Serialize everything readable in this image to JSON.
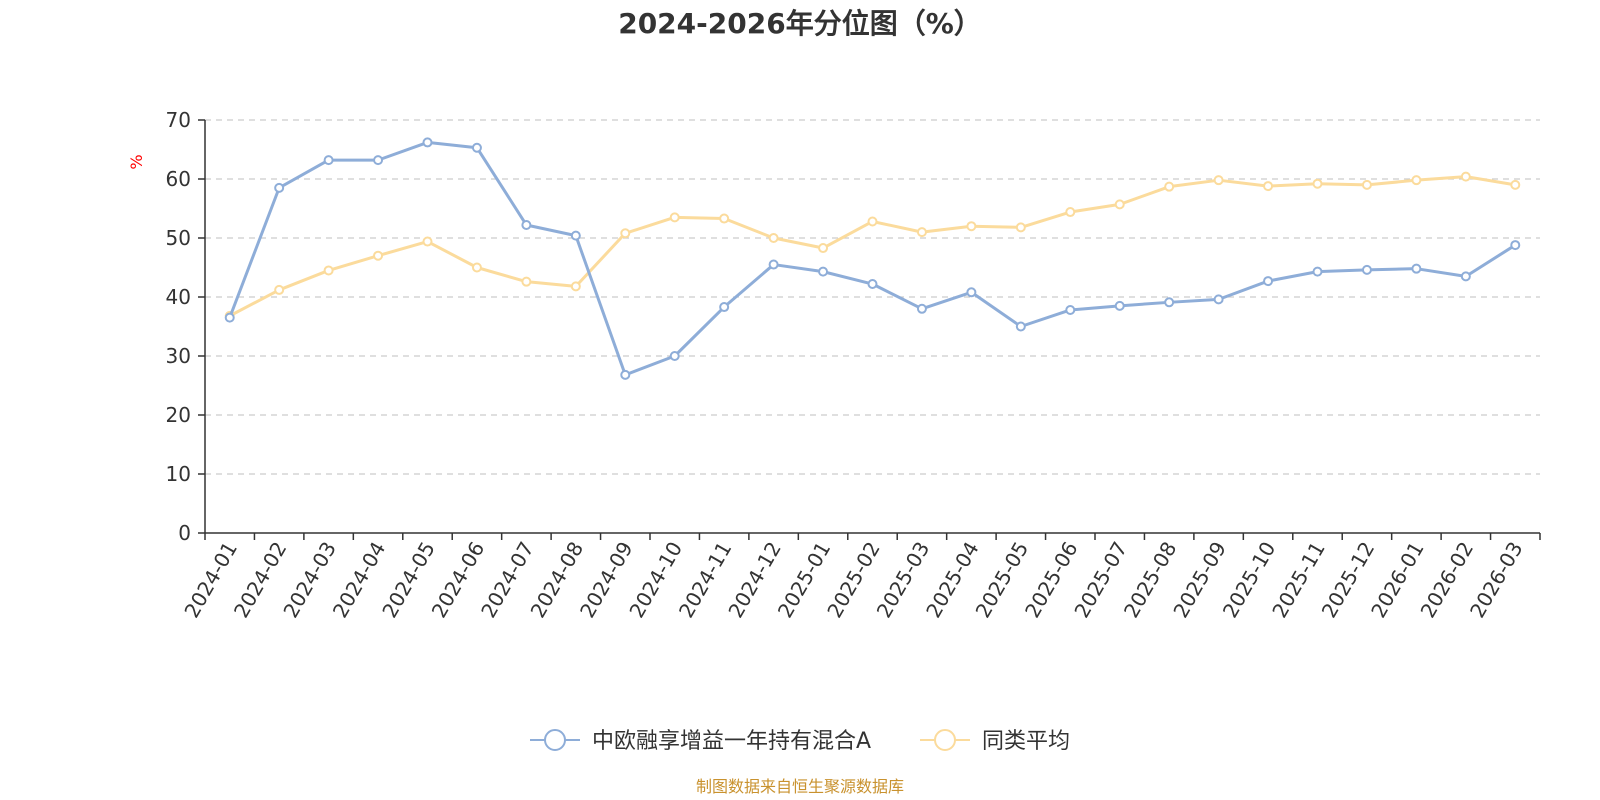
{
  "chart_data": {
    "type": "line",
    "title": "2024-2026年分位图（%）",
    "ylabel": "%",
    "ylim": [
      0,
      70
    ],
    "yticks": [
      0,
      10,
      20,
      30,
      40,
      50,
      60,
      70
    ],
    "grid": true,
    "legend_position": "bottom-center",
    "categories": [
      "2024-01",
      "2024-02",
      "2024-03",
      "2024-04",
      "2024-05",
      "2024-06",
      "2024-07",
      "2024-08",
      "2024-09",
      "2024-10",
      "2024-11",
      "2024-12",
      "2025-01",
      "2025-02",
      "2025-03",
      "2025-04",
      "2025-05",
      "2025-06",
      "2025-07",
      "2025-08",
      "2025-09",
      "2025-10",
      "2025-11",
      "2025-12",
      "2026-01",
      "2026-02",
      "2026-03"
    ],
    "series": [
      {
        "name": "中欧融享增益一年持有混合A",
        "color": "#8eadd8",
        "values": [
          36.5,
          58.5,
          63.2,
          63.2,
          66.2,
          65.3,
          52.2,
          50.4,
          26.8,
          30.0,
          38.3,
          45.5,
          44.3,
          42.2,
          38.0,
          40.8,
          35.0,
          37.8,
          38.5,
          39.1,
          39.6,
          42.7,
          44.3,
          44.6,
          44.8,
          43.5,
          48.8
        ]
      },
      {
        "name": "同类平均",
        "color": "#fbdb9c",
        "values": [
          36.8,
          41.2,
          44.5,
          47.0,
          49.4,
          45.0,
          42.6,
          41.8,
          50.8,
          53.5,
          53.3,
          50.0,
          48.3,
          52.8,
          51.0,
          52.0,
          51.8,
          54.4,
          55.7,
          58.7,
          59.8,
          58.8,
          59.2,
          59.0,
          59.8,
          60.4,
          59.0
        ]
      }
    ]
  },
  "source_text": "制图数据来自恒生聚源数据库",
  "colors": {
    "axis": "#333333",
    "grid": "#cccccc",
    "unit": "#ff0000",
    "source": "#c9922e"
  }
}
